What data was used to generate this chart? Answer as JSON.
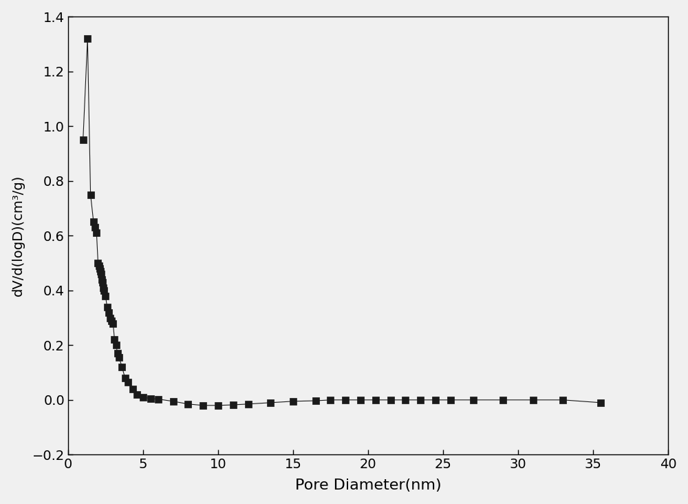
{
  "x": [
    1.0,
    1.3,
    1.5,
    1.7,
    1.8,
    1.9,
    2.0,
    2.05,
    2.1,
    2.15,
    2.2,
    2.25,
    2.3,
    2.35,
    2.4,
    2.5,
    2.6,
    2.7,
    2.8,
    2.9,
    3.0,
    3.1,
    3.2,
    3.3,
    3.4,
    3.6,
    3.8,
    4.0,
    4.3,
    4.6,
    5.0,
    5.5,
    6.0,
    7.0,
    8.0,
    9.0,
    10.0,
    11.0,
    12.0,
    13.5,
    15.0,
    16.5,
    17.5,
    18.5,
    19.5,
    20.5,
    21.5,
    22.5,
    23.5,
    24.5,
    25.5,
    27.0,
    29.0,
    31.0,
    33.0,
    35.5
  ],
  "y": [
    0.95,
    1.32,
    0.75,
    0.65,
    0.63,
    0.61,
    0.5,
    0.49,
    0.48,
    0.47,
    0.46,
    0.44,
    0.43,
    0.41,
    0.4,
    0.38,
    0.34,
    0.32,
    0.3,
    0.29,
    0.28,
    0.22,
    0.2,
    0.17,
    0.155,
    0.12,
    0.08,
    0.065,
    0.04,
    0.02,
    0.01,
    0.005,
    0.003,
    -0.005,
    -0.015,
    -0.02,
    -0.02,
    -0.018,
    -0.015,
    -0.01,
    -0.005,
    -0.003,
    0.0,
    0.0,
    0.0,
    0.0,
    0.0,
    0.0,
    0.0,
    0.0,
    0.0,
    0.0,
    0.0,
    0.0,
    0.0,
    -0.01
  ],
  "xlim": [
    0,
    40
  ],
  "ylim": [
    -0.2,
    1.4
  ],
  "xlabel": "Pore Diameter(nm)",
  "ylabel": "dV/d(logD)(cm³/g)",
  "xticks": [
    0,
    5,
    10,
    15,
    20,
    25,
    30,
    35,
    40
  ],
  "yticks": [
    -0.2,
    0.0,
    0.2,
    0.4,
    0.6,
    0.8,
    1.0,
    1.2,
    1.4
  ],
  "marker": "s",
  "markersize": 7,
  "color": "#1a1a1a",
  "linewidth": 0.8,
  "background_color": "#f0f0f0",
  "plot_bg_color": "#f0f0f0",
  "xlabel_fontsize": 16,
  "ylabel_fontsize": 14,
  "tick_fontsize": 14,
  "figure_width": 10.0,
  "figure_height": 7.32
}
